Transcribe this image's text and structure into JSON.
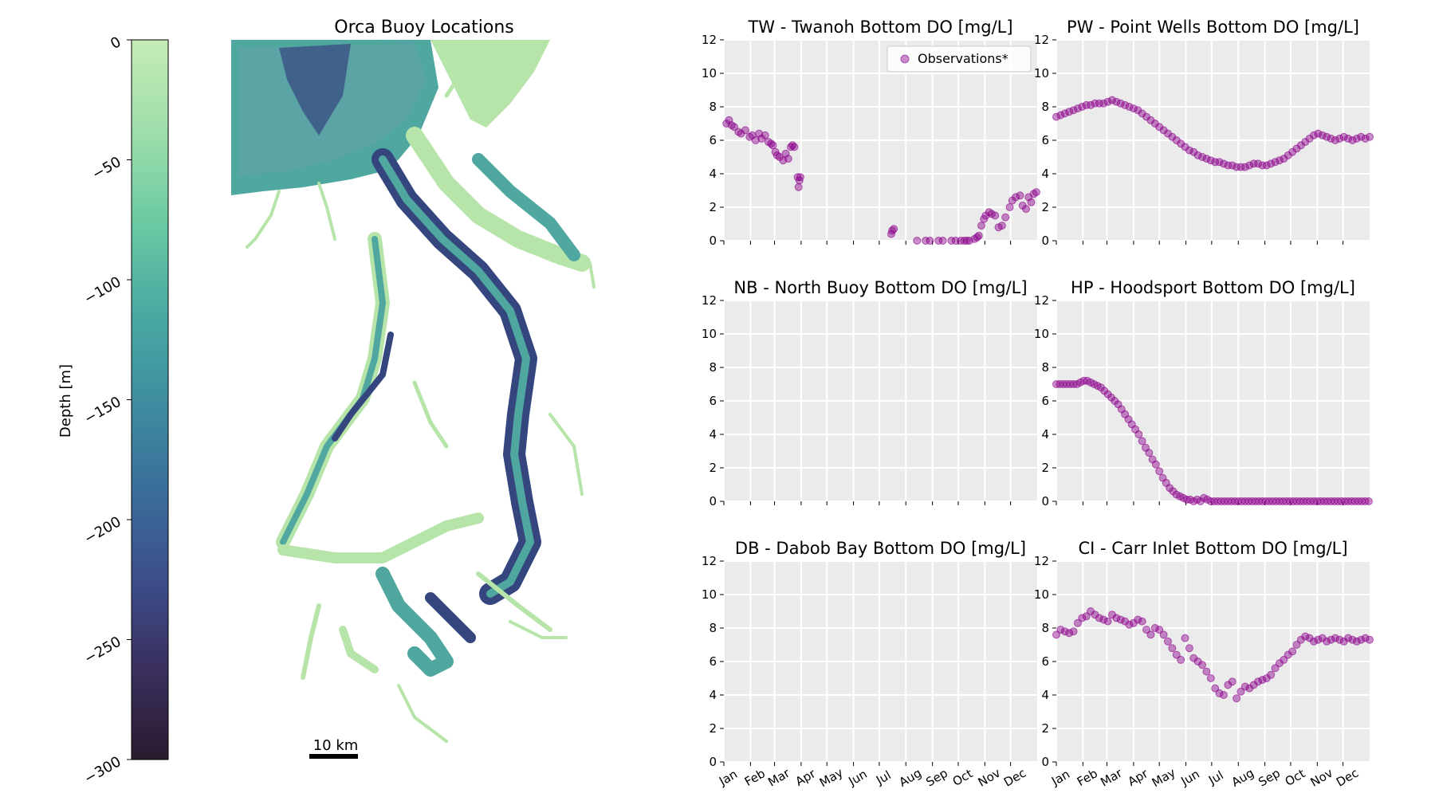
{
  "map": {
    "title": "Orca Buoy Locations",
    "scalebar_label": "10 km",
    "colorbar": {
      "label": "Depth [m]",
      "range": [
        -300,
        0
      ],
      "ticks": [
        0,
        -50,
        -100,
        -150,
        -200,
        -250,
        -300
      ],
      "tick_labels": [
        "0",
        "−50",
        "−100",
        "−150",
        "−200",
        "−250",
        "−300"
      ],
      "colors": [
        "#2a1b2e",
        "#3a2f5e",
        "#3d4e8c",
        "#3a6e9a",
        "#3e8ea0",
        "#4aaba2",
        "#6ccaa2",
        "#9fdeab",
        "#c6ecb7"
      ]
    },
    "water_light": "#b7e4a9",
    "water_mid": "#4fa79f",
    "water_deep": "#35467f"
  },
  "months": [
    "Jan",
    "Feb",
    "Mar",
    "Apr",
    "May",
    "Jun",
    "Jul",
    "Aug",
    "Sep",
    "Oct",
    "Nov",
    "Dec"
  ],
  "marker_color": "#8b008b",
  "legend_label": "Observations*",
  "chart_data": [
    {
      "type": "scatter",
      "title": "TW - Twanoh Bottom DO [mg/L]",
      "ylim": [
        0,
        12
      ],
      "yticks": [
        0,
        2,
        4,
        6,
        8,
        10,
        12
      ],
      "xlim": [
        0,
        365
      ],
      "legend": "top-right",
      "series": [
        {
          "name": "Observations*",
          "x": [
            3,
            6,
            9,
            12,
            17,
            20,
            25,
            30,
            33,
            37,
            41,
            44,
            48,
            52,
            55,
            57,
            60,
            62,
            65,
            69,
            72,
            75,
            78,
            80,
            82,
            86,
            87,
            88,
            89,
            195,
            196,
            198,
            225,
            235,
            240,
            250,
            255,
            265,
            270,
            276,
            280,
            283,
            286,
            292,
            295,
            297,
            300,
            303,
            305,
            309,
            312,
            316,
            320,
            324,
            328,
            333,
            336,
            340,
            345,
            348,
            352,
            355,
            358,
            361,
            364
          ],
          "y": [
            7.0,
            7.2,
            6.9,
            6.8,
            6.5,
            6.4,
            6.6,
            6.2,
            6.3,
            6.0,
            6.4,
            6.1,
            6.3,
            5.9,
            5.8,
            5.7,
            5.3,
            5.1,
            5.0,
            4.8,
            5.2,
            4.9,
            5.6,
            5.7,
            5.6,
            3.8,
            3.2,
            3.6,
            3.8,
            0.4,
            0.6,
            0.7,
            0.0,
            0.0,
            0.0,
            0.0,
            0.0,
            0.0,
            0.0,
            0.0,
            0.0,
            0.0,
            0.0,
            0.1,
            0.2,
            0.3,
            0.9,
            1.3,
            1.5,
            1.7,
            1.6,
            1.5,
            0.8,
            0.9,
            1.4,
            2.0,
            2.4,
            2.6,
            2.7,
            2.1,
            1.9,
            2.6,
            2.3,
            2.8,
            2.9
          ]
        }
      ]
    },
    {
      "type": "scatter",
      "title": "PW - Point Wells Bottom DO [mg/L]",
      "ylim": [
        0,
        12
      ],
      "yticks": [
        0,
        2,
        4,
        6,
        8,
        10,
        12
      ],
      "xlim": [
        0,
        365
      ],
      "series": [
        {
          "name": "Observations*",
          "x": [
            0,
            5,
            10,
            15,
            20,
            25,
            30,
            35,
            40,
            45,
            50,
            55,
            60,
            65,
            70,
            75,
            80,
            85,
            90,
            95,
            100,
            105,
            110,
            115,
            120,
            125,
            130,
            135,
            140,
            145,
            150,
            155,
            160,
            165,
            170,
            175,
            180,
            185,
            190,
            195,
            200,
            205,
            210,
            215,
            220,
            225,
            230,
            235,
            240,
            245,
            250,
            255,
            260,
            265,
            270,
            275,
            280,
            285,
            290,
            295,
            300,
            305,
            310,
            315,
            320,
            325,
            330,
            335,
            340,
            345,
            350,
            355,
            360,
            365
          ],
          "y": [
            7.4,
            7.5,
            7.6,
            7.7,
            7.8,
            7.9,
            8.0,
            8.1,
            8.1,
            8.2,
            8.2,
            8.2,
            8.3,
            8.4,
            8.3,
            8.2,
            8.1,
            8.0,
            7.9,
            7.8,
            7.6,
            7.4,
            7.2,
            7.0,
            6.8,
            6.6,
            6.4,
            6.2,
            6.0,
            5.8,
            5.6,
            5.4,
            5.3,
            5.1,
            5.0,
            4.9,
            4.8,
            4.7,
            4.7,
            4.6,
            4.5,
            4.5,
            4.4,
            4.4,
            4.4,
            4.5,
            4.6,
            4.6,
            4.5,
            4.5,
            4.6,
            4.7,
            4.8,
            4.9,
            5.1,
            5.3,
            5.5,
            5.7,
            5.9,
            6.1,
            6.3,
            6.4,
            6.3,
            6.2,
            6.1,
            6.0,
            6.1,
            6.2,
            6.1,
            6.0,
            6.1,
            6.2,
            6.1,
            6.2
          ]
        }
      ]
    },
    {
      "type": "scatter",
      "title": "NB - North Buoy Bottom DO [mg/L]",
      "ylim": [
        0,
        12
      ],
      "yticks": [
        0,
        2,
        4,
        6,
        8,
        10,
        12
      ],
      "xlim": [
        0,
        365
      ],
      "series": [
        {
          "name": "Observations*",
          "x": [],
          "y": []
        }
      ]
    },
    {
      "type": "scatter",
      "title": "HP - Hoodsport Bottom DO [mg/L]",
      "ylim": [
        0,
        12
      ],
      "yticks": [
        0,
        2,
        4,
        6,
        8,
        10,
        12
      ],
      "xlim": [
        0,
        365
      ],
      "series": [
        {
          "name": "Observations*",
          "x": [
            0,
            4,
            8,
            12,
            16,
            20,
            24,
            28,
            32,
            36,
            40,
            44,
            48,
            52,
            56,
            60,
            64,
            68,
            72,
            76,
            80,
            84,
            88,
            92,
            96,
            100,
            104,
            108,
            112,
            116,
            120,
            124,
            128,
            132,
            136,
            140,
            144,
            148,
            152,
            156,
            160,
            164,
            168,
            172,
            176,
            180,
            184,
            188,
            192,
            196,
            200,
            204,
            208,
            212,
            216,
            220,
            224,
            228,
            232,
            236,
            240,
            244,
            248,
            252,
            256,
            260,
            264,
            268,
            272,
            276,
            280,
            284,
            288,
            292,
            296,
            300,
            304,
            308,
            312,
            316,
            320,
            324,
            328,
            332,
            336,
            340,
            344,
            348,
            352,
            356,
            360,
            364
          ],
          "y": [
            7.0,
            7.0,
            7.0,
            7.0,
            7.0,
            7.0,
            7.0,
            7.1,
            7.2,
            7.2,
            7.1,
            7.0,
            6.9,
            6.8,
            6.6,
            6.4,
            6.2,
            6.0,
            5.8,
            5.5,
            5.2,
            4.9,
            4.6,
            4.3,
            4.0,
            3.6,
            3.2,
            2.9,
            2.5,
            2.2,
            1.8,
            1.4,
            1.1,
            0.8,
            0.6,
            0.4,
            0.3,
            0.2,
            0.1,
            0.1,
            0.0,
            0.1,
            0.0,
            0.2,
            0.1,
            0.0,
            0.0,
            0.0,
            0.0,
            0.0,
            0.0,
            0.0,
            0.0,
            0.0,
            0.0,
            0.0,
            0.0,
            0.0,
            0.0,
            0.0,
            0.0,
            0.0,
            0.0,
            0.0,
            0.0,
            0.0,
            0.0,
            0.0,
            0.0,
            0.0,
            0.0,
            0.0,
            0.0,
            0.0,
            0.0,
            0.0,
            0.0,
            0.0,
            0.0,
            0.0,
            0.0,
            0.0,
            0.0,
            0.0,
            0.0,
            0.0,
            0.0,
            0.0,
            0.0,
            0.0,
            0.0,
            0.0
          ]
        }
      ]
    },
    {
      "type": "scatter",
      "title": "DB - Dabob Bay Bottom DO [mg/L]",
      "ylim": [
        0,
        12
      ],
      "yticks": [
        0,
        2,
        4,
        6,
        8,
        10,
        12
      ],
      "xlim": [
        0,
        365
      ],
      "series": [
        {
          "name": "Observations*",
          "x": [],
          "y": []
        }
      ]
    },
    {
      "type": "scatter",
      "title": "CI - Carr Inlet Bottom DO [mg/L]",
      "ylim": [
        0,
        12
      ],
      "yticks": [
        0,
        2,
        4,
        6,
        8,
        10,
        12
      ],
      "xlim": [
        0,
        365
      ],
      "series": [
        {
          "name": "Observations*",
          "x": [
            0,
            5,
            10,
            15,
            20,
            25,
            30,
            35,
            40,
            45,
            50,
            55,
            60,
            65,
            70,
            75,
            80,
            85,
            90,
            95,
            100,
            105,
            110,
            115,
            120,
            125,
            130,
            135,
            140,
            145,
            150,
            155,
            160,
            165,
            170,
            175,
            180,
            185,
            190,
            195,
            200,
            205,
            210,
            215,
            220,
            225,
            230,
            235,
            240,
            245,
            250,
            255,
            260,
            265,
            270,
            275,
            280,
            285,
            290,
            295,
            300,
            305,
            310,
            315,
            320,
            325,
            330,
            335,
            340,
            345,
            350,
            355,
            360,
            365
          ],
          "y": [
            7.6,
            7.9,
            7.8,
            7.7,
            7.8,
            8.3,
            8.6,
            8.7,
            9.0,
            8.8,
            8.6,
            8.5,
            8.4,
            8.8,
            8.6,
            8.5,
            8.4,
            8.2,
            8.3,
            8.5,
            8.4,
            7.9,
            7.6,
            8.0,
            7.9,
            7.6,
            7.2,
            6.8,
            6.4,
            6.1,
            7.4,
            6.8,
            6.2,
            6.0,
            5.8,
            5.4,
            5.0,
            4.4,
            4.1,
            4.0,
            4.6,
            4.8,
            3.8,
            4.2,
            4.5,
            4.4,
            4.6,
            4.8,
            4.9,
            5.0,
            5.2,
            5.6,
            5.9,
            6.1,
            6.4,
            6.6,
            7.0,
            7.3,
            7.5,
            7.4,
            7.2,
            7.3,
            7.4,
            7.2,
            7.3,
            7.4,
            7.3,
            7.2,
            7.4,
            7.3,
            7.2,
            7.3,
            7.4,
            7.3
          ]
        }
      ]
    }
  ]
}
